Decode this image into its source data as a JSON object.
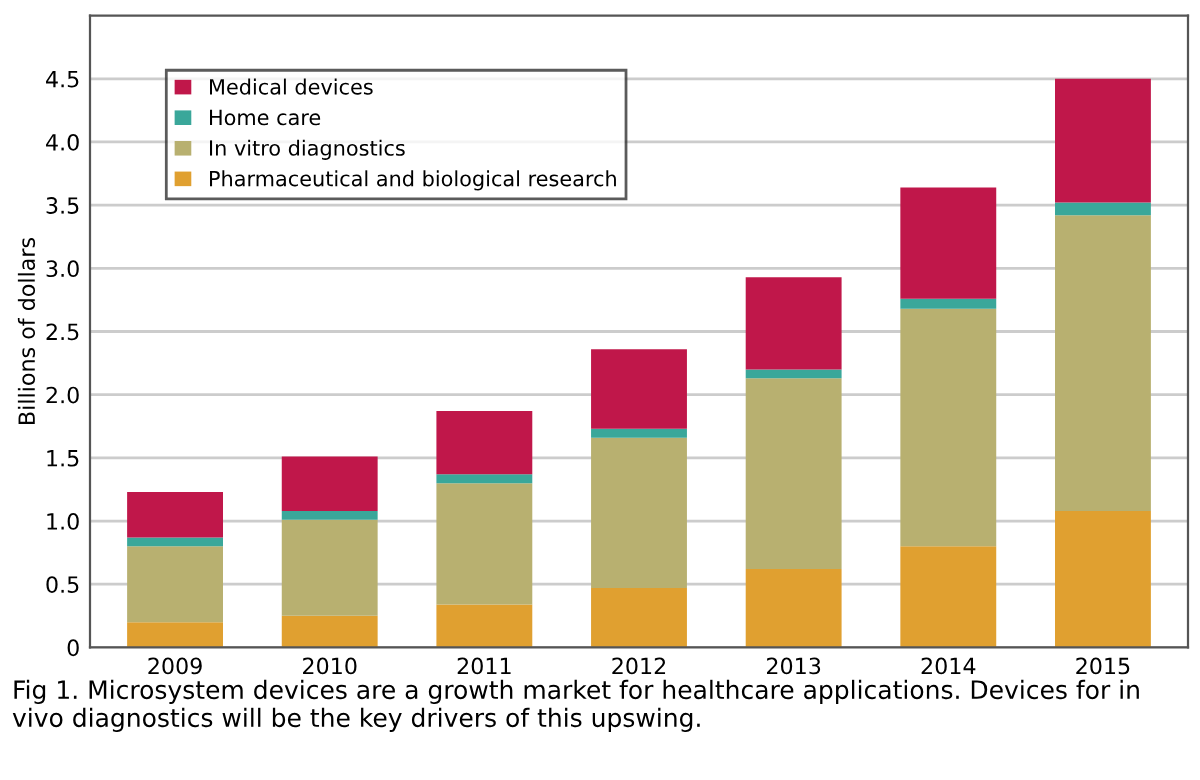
{
  "chart_data": {
    "type": "bar",
    "stacked": true,
    "ylabel": "Billions of dollars",
    "categories": [
      "2009",
      "2010",
      "2011",
      "2012",
      "2013",
      "2014",
      "2015"
    ],
    "series": [
      {
        "name": "Pharmaceutical and biological research",
        "color": "#e0a030",
        "values": [
          0.2,
          0.25,
          0.34,
          0.47,
          0.62,
          0.8,
          1.08
        ]
      },
      {
        "name": "In vitro diagnostics",
        "color": "#b8b070",
        "values": [
          0.6,
          0.76,
          0.96,
          1.19,
          1.51,
          1.88,
          2.34
        ]
      },
      {
        "name": "Home care",
        "color": "#3aa79a",
        "values": [
          0.07,
          0.07,
          0.07,
          0.07,
          0.07,
          0.08,
          0.1
        ]
      },
      {
        "name": "Medical devices",
        "color": "#c0174a",
        "values": [
          0.36,
          0.43,
          0.5,
          0.63,
          0.73,
          0.88,
          0.98
        ]
      }
    ],
    "ylim": [
      0,
      5.0
    ],
    "yticks": [
      0,
      0.5,
      {
        "value": 1.0,
        "label": "1.0"
      },
      1.5,
      {
        "value": 2.0,
        "label": "2.0"
      },
      2.5,
      {
        "value": 3.0,
        "label": "3.0"
      },
      3.5,
      {
        "value": 4.0,
        "label": "4.0"
      },
      4.5
    ],
    "grid": "y",
    "legend": "top left",
    "annotations": [
      "Fig 1. Microsystem devices are a growth market for healthcare applications. Devices for in vivo diagnostics will be the key drivers of this upswing."
    ]
  }
}
